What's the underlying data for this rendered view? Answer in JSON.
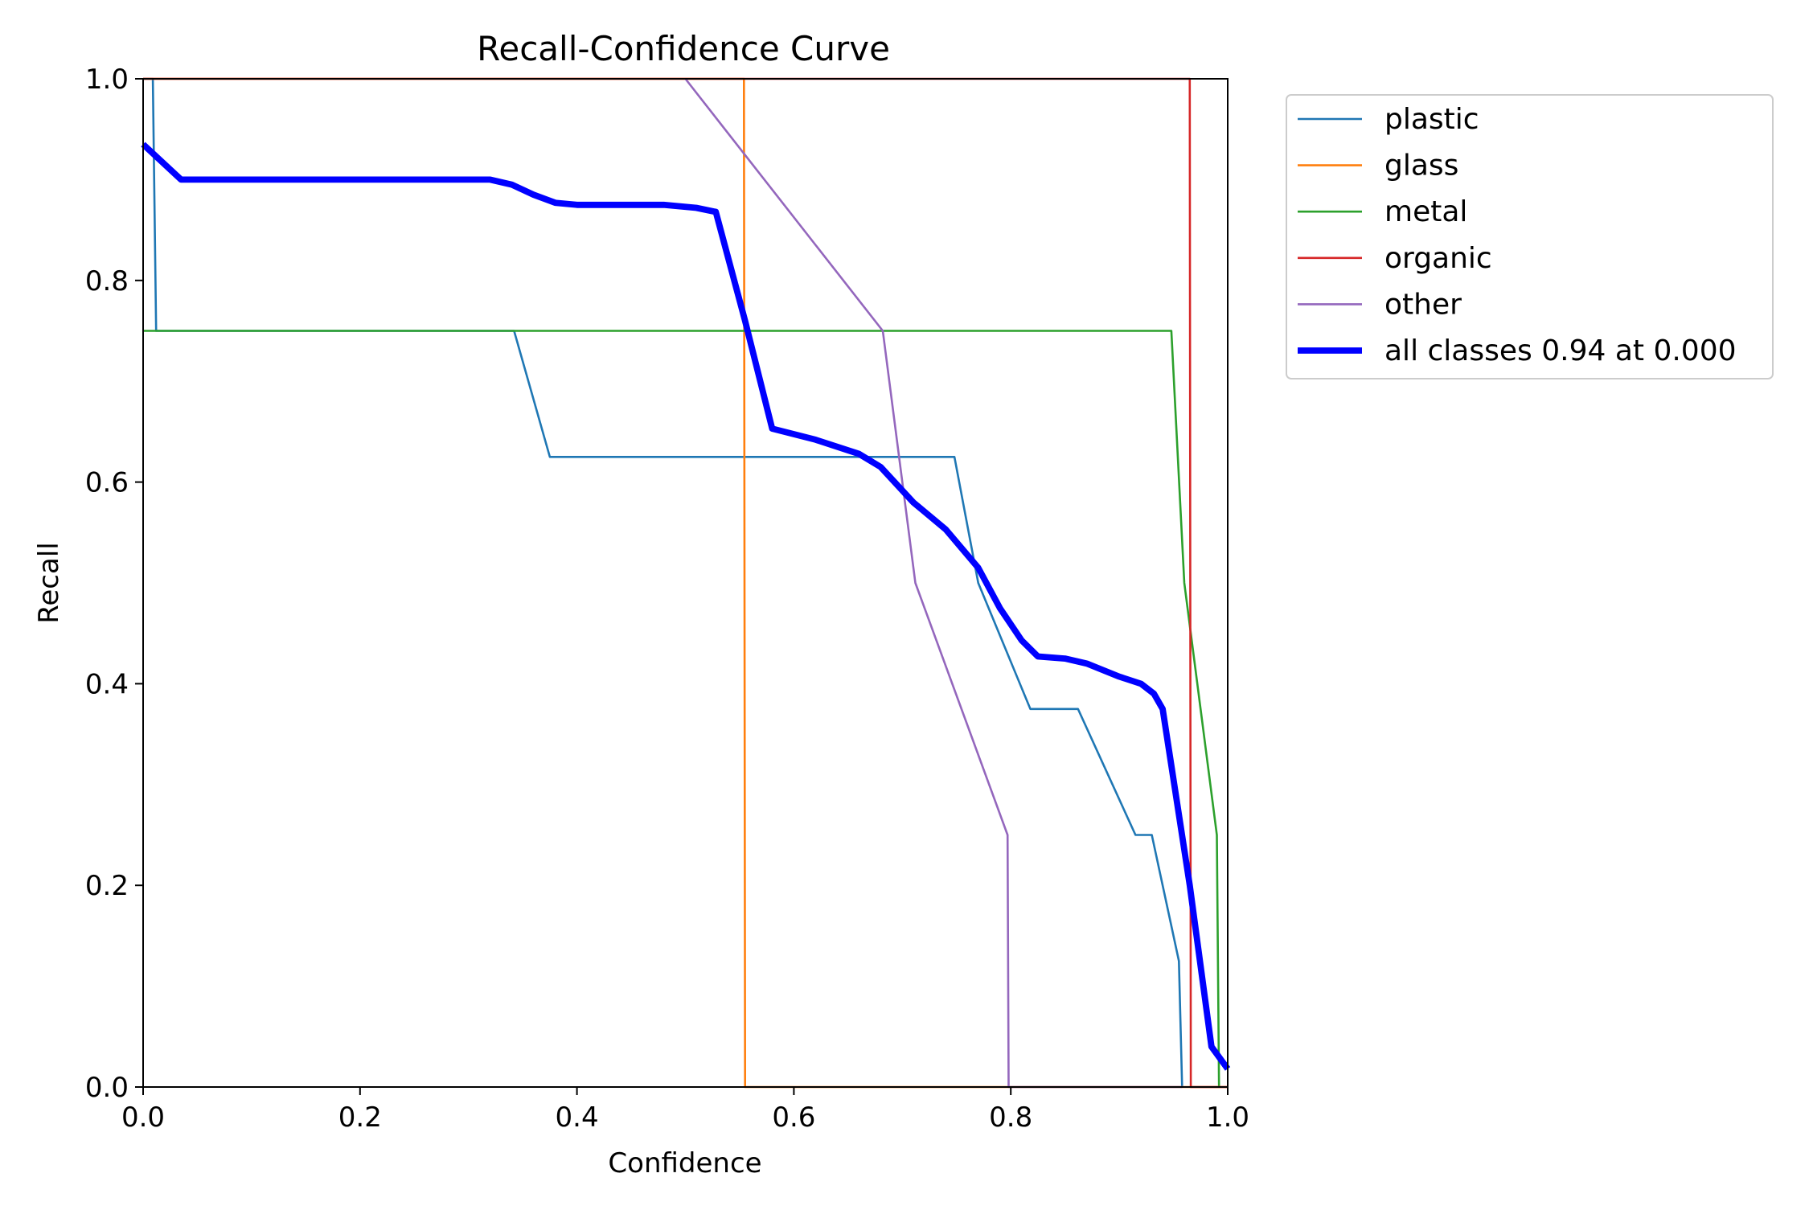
{
  "chart_data": {
    "type": "line",
    "title": "Recall-Confidence Curve",
    "xlabel": "Confidence",
    "ylabel": "Recall",
    "xlim": [
      0,
      1
    ],
    "ylim": [
      0,
      1
    ],
    "x_ticks": [
      "0.0",
      "0.2",
      "0.4",
      "0.6",
      "0.8",
      "1.0"
    ],
    "y_ticks": [
      "0.0",
      "0.2",
      "0.4",
      "0.6",
      "0.8",
      "1.0"
    ],
    "grid": false,
    "legend_position": "outside-upper-right",
    "series": [
      {
        "name": "plastic",
        "color": "#1f77b4",
        "width": 1,
        "points": [
          [
            0.0,
            1.0
          ],
          [
            0.009,
            1.0
          ],
          [
            0.012,
            0.75
          ],
          [
            0.342,
            0.75
          ],
          [
            0.375,
            0.625
          ],
          [
            0.748,
            0.625
          ],
          [
            0.77,
            0.5
          ],
          [
            0.818,
            0.375
          ],
          [
            0.862,
            0.375
          ],
          [
            0.915,
            0.25
          ],
          [
            0.93,
            0.25
          ],
          [
            0.955,
            0.125
          ],
          [
            0.958,
            0.0
          ]
        ]
      },
      {
        "name": "glass",
        "color": "#ff7f0e",
        "width": 1,
        "points": [
          [
            0.0,
            1.0
          ],
          [
            0.554,
            1.0
          ],
          [
            0.555,
            0.0
          ],
          [
            1.0,
            0.0
          ]
        ]
      },
      {
        "name": "metal",
        "color": "#2ca02c",
        "width": 1,
        "points": [
          [
            0.0,
            0.75
          ],
          [
            0.948,
            0.75
          ],
          [
            0.96,
            0.5
          ],
          [
            0.99,
            0.25
          ],
          [
            0.992,
            0.0
          ]
        ]
      },
      {
        "name": "organic",
        "color": "#d62728",
        "width": 1,
        "points": [
          [
            0.0,
            1.0
          ],
          [
            0.965,
            1.0
          ],
          [
            0.966,
            0.0
          ],
          [
            1.0,
            0.0
          ]
        ]
      },
      {
        "name": "other",
        "color": "#9467bd",
        "width": 1,
        "points": [
          [
            0.5,
            1.0
          ],
          [
            0.682,
            0.75
          ],
          [
            0.712,
            0.5
          ],
          [
            0.797,
            0.25
          ],
          [
            0.798,
            0.0
          ],
          [
            0.958,
            0.0
          ]
        ]
      },
      {
        "name": "all classes 0.94 at 0.000",
        "color": "#0000ff",
        "width": 3,
        "points": [
          [
            0.0,
            0.935
          ],
          [
            0.035,
            0.9
          ],
          [
            0.32,
            0.9
          ],
          [
            0.34,
            0.895
          ],
          [
            0.36,
            0.885
          ],
          [
            0.38,
            0.877
          ],
          [
            0.4,
            0.875
          ],
          [
            0.48,
            0.875
          ],
          [
            0.51,
            0.872
          ],
          [
            0.528,
            0.868
          ],
          [
            0.555,
            0.76
          ],
          [
            0.58,
            0.653
          ],
          [
            0.62,
            0.642
          ],
          [
            0.66,
            0.628
          ],
          [
            0.68,
            0.615
          ],
          [
            0.71,
            0.58
          ],
          [
            0.74,
            0.553
          ],
          [
            0.77,
            0.515
          ],
          [
            0.79,
            0.475
          ],
          [
            0.81,
            0.443
          ],
          [
            0.825,
            0.427
          ],
          [
            0.85,
            0.425
          ],
          [
            0.87,
            0.42
          ],
          [
            0.9,
            0.407
          ],
          [
            0.92,
            0.4
          ],
          [
            0.932,
            0.39
          ],
          [
            0.94,
            0.375
          ],
          [
            0.965,
            0.2
          ],
          [
            0.985,
            0.04
          ],
          [
            1.0,
            0.018
          ]
        ]
      }
    ]
  }
}
